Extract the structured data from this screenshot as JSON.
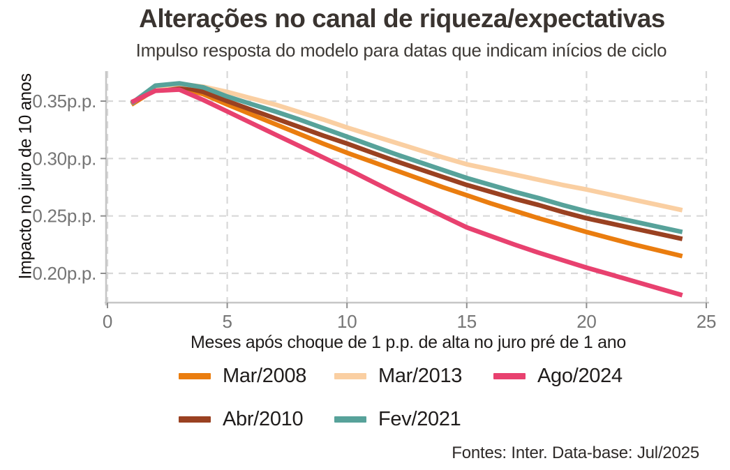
{
  "header": {
    "title": "Alterações no canal de riqueza/expectativas",
    "subtitle": "Impulso resposta do modelo para datas que indicam inícios de ciclo"
  },
  "footer": {
    "source": "Fontes: Inter. Data-base: Jul/2025"
  },
  "chart_data": {
    "type": "line",
    "title": "Alterações no canal de riqueza/expectativas",
    "subtitle": "Impulso resposta do modelo para datas que indicam inícios de ciclo",
    "xlabel": "Meses após choque de 1 p.p. de alta no juro pré de 1 ano",
    "ylabel": "Impacto no juro de 10 anos",
    "xlim": [
      0,
      25
    ],
    "ylim": [
      0.175,
      0.368
    ],
    "grid": "dashed-major",
    "legend_position": "bottom",
    "x_ticks": [
      {
        "value": 0,
        "label": "0"
      },
      {
        "value": 5,
        "label": "5"
      },
      {
        "value": 10,
        "label": "10"
      },
      {
        "value": 15,
        "label": "15"
      },
      {
        "value": 20,
        "label": "20"
      },
      {
        "value": 25,
        "label": "25"
      }
    ],
    "y_ticks": [
      {
        "value": 0.35,
        "label": "0.35p.p."
      },
      {
        "value": 0.3,
        "label": "0.30p.p."
      },
      {
        "value": 0.25,
        "label": "0.25p.p."
      },
      {
        "value": 0.2,
        "label": "0.20p.p."
      }
    ],
    "x": [
      1,
      2,
      3,
      4,
      5,
      6,
      7,
      8,
      9,
      10,
      11,
      12,
      13,
      14,
      15,
      16,
      17,
      18,
      19,
      20,
      21,
      22,
      23,
      24
    ],
    "series": [
      {
        "name": "Mar/2008",
        "color": "#EA7D0F",
        "values": [
          0.347,
          0.36,
          0.362,
          0.356,
          0.347,
          0.3385,
          0.33,
          0.3215,
          0.313,
          0.305,
          0.2975,
          0.29,
          0.2825,
          0.275,
          0.268,
          0.261,
          0.2545,
          0.248,
          0.242,
          0.236,
          0.2305,
          0.225,
          0.22,
          0.215
        ]
      },
      {
        "name": "Abr/2010",
        "color": "#9A4121",
        "values": [
          0.348,
          0.361,
          0.363,
          0.358,
          0.35,
          0.3425,
          0.335,
          0.3275,
          0.32,
          0.313,
          0.3055,
          0.298,
          0.291,
          0.284,
          0.277,
          0.271,
          0.265,
          0.2595,
          0.2535,
          0.248,
          0.2435,
          0.239,
          0.2345,
          0.23
        ]
      },
      {
        "name": "Mar/2013",
        "color": "#FACFA2",
        "values": [
          0.348,
          0.362,
          0.365,
          0.3625,
          0.358,
          0.3525,
          0.347,
          0.3405,
          0.334,
          0.327,
          0.3205,
          0.314,
          0.3075,
          0.301,
          0.295,
          0.2905,
          0.286,
          0.2815,
          0.277,
          0.273,
          0.2685,
          0.264,
          0.2595,
          0.255
        ]
      },
      {
        "name": "Fev/2021",
        "color": "#57A29A",
        "values": [
          0.348,
          0.3635,
          0.3655,
          0.362,
          0.354,
          0.3475,
          0.341,
          0.334,
          0.3265,
          0.319,
          0.3115,
          0.304,
          0.297,
          0.29,
          0.283,
          0.277,
          0.271,
          0.2655,
          0.2595,
          0.254,
          0.2495,
          0.245,
          0.2405,
          0.236
        ]
      },
      {
        "name": "Ago/2024",
        "color": "#E8416F",
        "values": [
          0.349,
          0.359,
          0.36,
          0.351,
          0.341,
          0.331,
          0.321,
          0.311,
          0.301,
          0.291,
          0.2805,
          0.27,
          0.26,
          0.25,
          0.24,
          0.2325,
          0.225,
          0.218,
          0.2115,
          0.205,
          0.199,
          0.193,
          0.187,
          0.181
        ]
      }
    ],
    "legend_rows": [
      [
        "Mar/2008",
        "Mar/2013",
        "Ago/2024"
      ],
      [
        "Abr/2010",
        "Fev/2021"
      ]
    ],
    "style_colors": {
      "grid": "#d8d8d8",
      "axis_line": "#c6c6c6",
      "tick_mark": "#8f8f8f",
      "tick_label": "#757575",
      "title_text": "#3a3430"
    }
  }
}
